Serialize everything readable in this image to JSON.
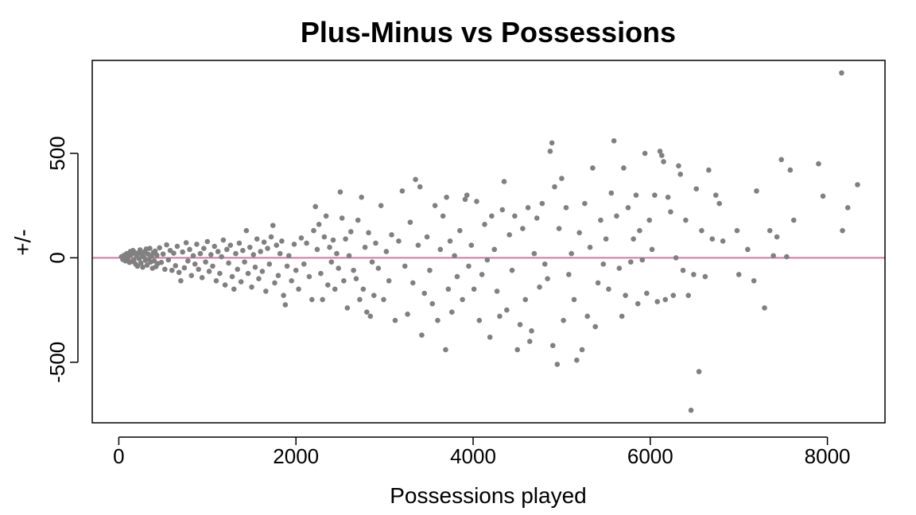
{
  "chart_data": {
    "type": "scatter",
    "title": "Plus-Minus vs Possessions",
    "xlabel": "Possessions played",
    "ylabel": "+/-",
    "xlim": [
      -300,
      8650
    ],
    "ylim": [
      -790,
      945
    ],
    "xticks": [
      0,
      2000,
      4000,
      6000,
      8000
    ],
    "yticks": [
      -500,
      0,
      500
    ],
    "reference_line": {
      "y": 0,
      "color": "#cc79a7"
    },
    "point_color": "#808080",
    "grid": false,
    "series": [
      {
        "points": [
          [
            30,
            5
          ],
          [
            45,
            -8
          ],
          [
            60,
            12
          ],
          [
            75,
            -15
          ],
          [
            90,
            20
          ],
          [
            100,
            -5
          ],
          [
            110,
            8
          ],
          [
            120,
            -22
          ],
          [
            130,
            30
          ],
          [
            140,
            15
          ],
          [
            150,
            -18
          ],
          [
            160,
            35
          ],
          [
            170,
            -10
          ],
          [
            180,
            25
          ],
          [
            190,
            -30
          ],
          [
            200,
            10
          ],
          [
            210,
            -40
          ],
          [
            220,
            22
          ],
          [
            230,
            -5
          ],
          [
            240,
            38
          ],
          [
            250,
            -25
          ],
          [
            260,
            15
          ],
          [
            270,
            -45
          ],
          [
            280,
            5
          ],
          [
            290,
            28
          ],
          [
            300,
            -12
          ],
          [
            310,
            42
          ],
          [
            320,
            -35
          ],
          [
            330,
            18
          ],
          [
            340,
            -8
          ],
          [
            350,
            45
          ],
          [
            360,
            -20
          ],
          [
            370,
            8
          ],
          [
            380,
            -50
          ],
          [
            390,
            25
          ],
          [
            400,
            -15
          ],
          [
            410,
            32
          ],
          [
            420,
            -42
          ],
          [
            430,
            12
          ],
          [
            440,
            -28
          ],
          [
            460,
            48
          ],
          [
            480,
            -22
          ],
          [
            500,
            18
          ],
          [
            520,
            -55
          ],
          [
            540,
            62
          ],
          [
            560,
            -10
          ],
          [
            580,
            35
          ],
          [
            600,
            -60
          ],
          [
            620,
            22
          ],
          [
            640,
            -38
          ],
          [
            660,
            55
          ],
          [
            680,
            -70
          ],
          [
            700,
            -110
          ],
          [
            720,
            28
          ],
          [
            740,
            -48
          ],
          [
            760,
            72
          ],
          [
            780,
            -15
          ],
          [
            800,
            40
          ],
          [
            820,
            -85
          ],
          [
            840,
            10
          ],
          [
            860,
            -30
          ],
          [
            880,
            65
          ],
          [
            900,
            -55
          ],
          [
            920,
            20
          ],
          [
            940,
            -95
          ],
          [
            960,
            45
          ],
          [
            980,
            -20
          ],
          [
            1000,
            78
          ],
          [
            1020,
            -65
          ],
          [
            1040,
            15
          ],
          [
            1060,
            -40
          ],
          [
            1080,
            55
          ],
          [
            1100,
            -110
          ],
          [
            1120,
            30
          ],
          [
            1140,
            -75
          ],
          [
            1160,
            5
          ],
          [
            1180,
            85
          ],
          [
            1200,
            -130
          ],
          [
            1220,
            40
          ],
          [
            1240,
            -25
          ],
          [
            1260,
            60
          ],
          [
            1280,
            -90
          ],
          [
            1300,
            -150
          ],
          [
            1320,
            20
          ],
          [
            1340,
            -55
          ],
          [
            1360,
            70
          ],
          [
            1380,
            -115
          ],
          [
            1400,
            35
          ],
          [
            1420,
            -20
          ],
          [
            1440,
            130
          ],
          [
            1460,
            -75
          ],
          [
            1480,
            50
          ],
          [
            1500,
            -140
          ],
          [
            1520,
            15
          ],
          [
            1540,
            -45
          ],
          [
            1560,
            90
          ],
          [
            1580,
            -100
          ],
          [
            1600,
            30
          ],
          [
            1620,
            -65
          ],
          [
            1640,
            75
          ],
          [
            1660,
            -160
          ],
          [
            1680,
            45
          ],
          [
            1700,
            -30
          ],
          [
            1720,
            100
          ],
          [
            1740,
            155
          ],
          [
            1760,
            -120
          ],
          [
            1780,
            60
          ],
          [
            1800,
            -85
          ],
          [
            1820,
            20
          ],
          [
            1840,
            80
          ],
          [
            1860,
            -180
          ],
          [
            1880,
            -225
          ],
          [
            1900,
            -40
          ],
          [
            1920,
            10
          ],
          [
            1950,
            -110
          ],
          [
            1980,
            65
          ],
          [
            2000,
            -60
          ],
          [
            2030,
            -150
          ],
          [
            2060,
            95
          ],
          [
            2090,
            -30
          ],
          [
            2120,
            70
          ],
          [
            2150,
            -90
          ],
          [
            2180,
            -200
          ],
          [
            2200,
            130
          ],
          [
            2220,
            245
          ],
          [
            2240,
            40
          ],
          [
            2260,
            160
          ],
          [
            2280,
            -75
          ],
          [
            2300,
            -200
          ],
          [
            2320,
            100
          ],
          [
            2340,
            200
          ],
          [
            2360,
            -130
          ],
          [
            2380,
            50
          ],
          [
            2400,
            -20
          ],
          [
            2420,
            85
          ],
          [
            2440,
            -150
          ],
          [
            2460,
            20
          ],
          [
            2480,
            -50
          ],
          [
            2500,
            315
          ],
          [
            2520,
            190
          ],
          [
            2540,
            -110
          ],
          [
            2560,
            90
          ],
          [
            2580,
            -240
          ],
          [
            2600,
            10
          ],
          [
            2620,
            125
          ],
          [
            2650,
            -60
          ],
          [
            2680,
            -100
          ],
          [
            2700,
            180
          ],
          [
            2720,
            -200
          ],
          [
            2740,
            290
          ],
          [
            2760,
            -150
          ],
          [
            2780,
            50
          ],
          [
            2800,
            -260
          ],
          [
            2820,
            120
          ],
          [
            2840,
            -280
          ],
          [
            2860,
            -20
          ],
          [
            2880,
            -180
          ],
          [
            2900,
            70
          ],
          [
            2930,
            -50
          ],
          [
            2960,
            250
          ],
          [
            2990,
            -200
          ],
          [
            3020,
            30
          ],
          [
            3050,
            -110
          ],
          [
            3080,
            110
          ],
          [
            3120,
            -300
          ],
          [
            3160,
            80
          ],
          [
            3200,
            320
          ],
          [
            3230,
            -40
          ],
          [
            3260,
            -270
          ],
          [
            3290,
            170
          ],
          [
            3320,
            -120
          ],
          [
            3350,
            375
          ],
          [
            3380,
            60
          ],
          [
            3400,
            340
          ],
          [
            3420,
            -370
          ],
          [
            3450,
            -170
          ],
          [
            3480,
            100
          ],
          [
            3510,
            -60
          ],
          [
            3540,
            -220
          ],
          [
            3570,
            250
          ],
          [
            3600,
            -300
          ],
          [
            3630,
            40
          ],
          [
            3660,
            200
          ],
          [
            3690,
            -440
          ],
          [
            3700,
            290
          ],
          [
            3720,
            -150
          ],
          [
            3740,
            80
          ],
          [
            3760,
            -260
          ],
          [
            3790,
            10
          ],
          [
            3820,
            -90
          ],
          [
            3850,
            130
          ],
          [
            3880,
            -200
          ],
          [
            3910,
            280
          ],
          [
            3930,
            300
          ],
          [
            3950,
            -40
          ],
          [
            3980,
            60
          ],
          [
            4010,
            -150
          ],
          [
            4040,
            270
          ],
          [
            4070,
            -300
          ],
          [
            4100,
            -80
          ],
          [
            4130,
            160
          ],
          [
            4160,
            -10
          ],
          [
            4190,
            -380
          ],
          [
            4210,
            200
          ],
          [
            4240,
            40
          ],
          [
            4270,
            -160
          ],
          [
            4300,
            -280
          ],
          [
            4330,
            230
          ],
          [
            4350,
            365
          ],
          [
            4380,
            -250
          ],
          [
            4410,
            110
          ],
          [
            4440,
            -60
          ],
          [
            4470,
            200
          ],
          [
            4500,
            -440
          ],
          [
            4530,
            -320
          ],
          [
            4560,
            140
          ],
          [
            4590,
            -200
          ],
          [
            4620,
            240
          ],
          [
            4640,
            -400
          ],
          [
            4660,
            -350
          ],
          [
            4690,
            20
          ],
          [
            4720,
            190
          ],
          [
            4750,
            -140
          ],
          [
            4780,
            260
          ],
          [
            4810,
            -30
          ],
          [
            4840,
            -100
          ],
          [
            4870,
            510
          ],
          [
            4890,
            550
          ],
          [
            4900,
            -420
          ],
          [
            4920,
            340
          ],
          [
            4950,
            -510
          ],
          [
            4970,
            140
          ],
          [
            5000,
            380
          ],
          [
            5020,
            -300
          ],
          [
            5050,
            240
          ],
          [
            5080,
            -80
          ],
          [
            5110,
            20
          ],
          [
            5140,
            -200
          ],
          [
            5170,
            -490
          ],
          [
            5200,
            120
          ],
          [
            5230,
            -440
          ],
          [
            5260,
            260
          ],
          [
            5290,
            -280
          ],
          [
            5320,
            50
          ],
          [
            5350,
            430
          ],
          [
            5380,
            -330
          ],
          [
            5410,
            -120
          ],
          [
            5440,
            180
          ],
          [
            5470,
            -30
          ],
          [
            5500,
            90
          ],
          [
            5530,
            -150
          ],
          [
            5560,
            310
          ],
          [
            5590,
            560
          ],
          [
            5620,
            200
          ],
          [
            5650,
            -50
          ],
          [
            5680,
            -280
          ],
          [
            5700,
            430
          ],
          [
            5720,
            -180
          ],
          [
            5750,
            240
          ],
          [
            5780,
            -20
          ],
          [
            5810,
            90
          ],
          [
            5840,
            300
          ],
          [
            5860,
            -220
          ],
          [
            5880,
            130
          ],
          [
            5910,
            -10
          ],
          [
            5940,
            500
          ],
          [
            5960,
            -170
          ],
          [
            5990,
            180
          ],
          [
            6020,
            40
          ],
          [
            6050,
            300
          ],
          [
            6080,
            -210
          ],
          [
            6110,
            510
          ],
          [
            6130,
            490
          ],
          [
            6150,
            460
          ],
          [
            6170,
            -200
          ],
          [
            6200,
            290
          ],
          [
            6230,
            220
          ],
          [
            6260,
            -180
          ],
          [
            6290,
            0
          ],
          [
            6320,
            440
          ],
          [
            6340,
            400
          ],
          [
            6370,
            -60
          ],
          [
            6400,
            180
          ],
          [
            6430,
            -180
          ],
          [
            6460,
            -730
          ],
          [
            6490,
            -80
          ],
          [
            6520,
            330
          ],
          [
            6550,
            -545
          ],
          [
            6580,
            130
          ],
          [
            6620,
            -90
          ],
          [
            6660,
            420
          ],
          [
            6700,
            90
          ],
          [
            6740,
            300
          ],
          [
            6780,
            260
          ],
          [
            6820,
            80
          ],
          [
            6980,
            130
          ],
          [
            7000,
            -80
          ],
          [
            7100,
            40
          ],
          [
            7170,
            -110
          ],
          [
            7200,
            320
          ],
          [
            7290,
            -240
          ],
          [
            7350,
            130
          ],
          [
            7390,
            10
          ],
          [
            7430,
            100
          ],
          [
            7480,
            470
          ],
          [
            7540,
            5
          ],
          [
            7580,
            420
          ],
          [
            7620,
            180
          ],
          [
            7900,
            450
          ],
          [
            7950,
            295
          ],
          [
            8160,
            885
          ],
          [
            8170,
            130
          ],
          [
            8230,
            240
          ],
          [
            8340,
            350
          ]
        ]
      }
    ]
  }
}
